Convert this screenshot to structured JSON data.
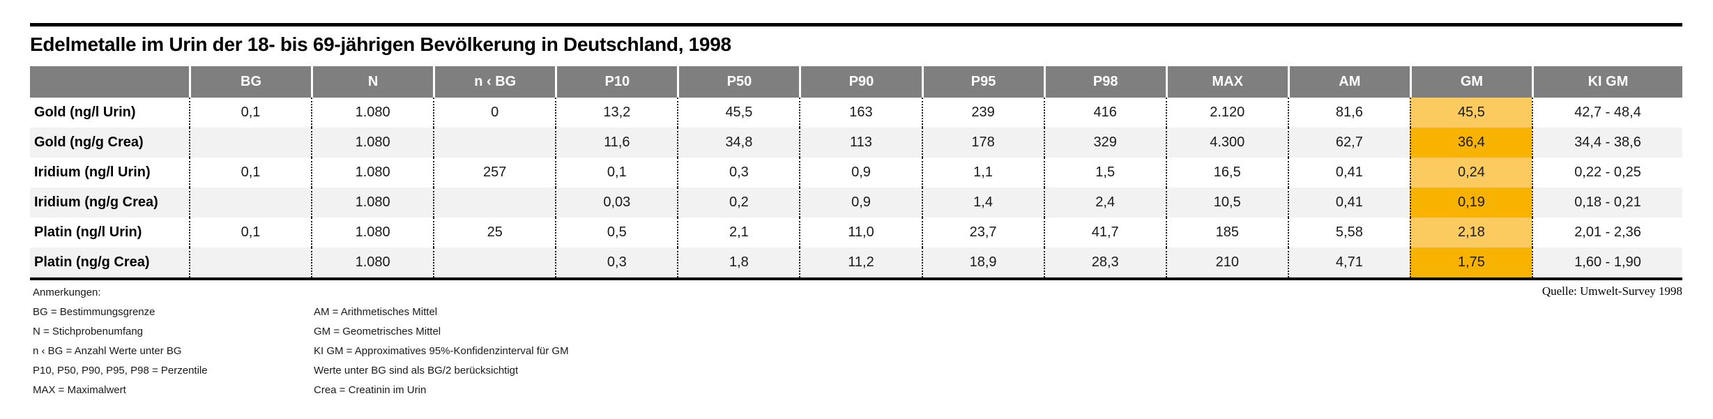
{
  "title": "Edelmetalle im Urin der 18- bis 69-jährigen Bevölkerung in Deutschland, 1998",
  "source": "Quelle: Umwelt-Survey 1998",
  "colors": {
    "header_gray": "#7f7f7f",
    "stripe_gray": "#f2f2f2",
    "gm_highlight_light": "#fbcb5f",
    "gm_highlight_dark": "#f8b200",
    "rule_black": "#000000"
  },
  "table": {
    "columns": [
      "",
      "BG",
      "N",
      "n ‹ BG",
      "P10",
      "P50",
      "P90",
      "P95",
      "P98",
      "MAX",
      "AM",
      "GM",
      "KI GM"
    ],
    "rows": [
      {
        "label": "Gold (ng/l Urin)",
        "bg": "0,1",
        "n": "1.080",
        "nbg": "0",
        "p10": "13,2",
        "p50": "45,5",
        "p90": "163",
        "p95": "239",
        "p98": "416",
        "max": "2.120",
        "am": "81,6",
        "gm": "45,5",
        "kigm": "42,7 - 48,4"
      },
      {
        "label": "Gold (ng/g Crea)",
        "bg": "",
        "n": "1.080",
        "nbg": "",
        "p10": "11,6",
        "p50": "34,8",
        "p90": "113",
        "p95": "178",
        "p98": "329",
        "max": "4.300",
        "am": "62,7",
        "gm": "36,4",
        "kigm": "34,4 - 38,6"
      },
      {
        "label": "Iridium (ng/l Urin)",
        "bg": "0,1",
        "n": "1.080",
        "nbg": "257",
        "p10": "0,1",
        "p50": "0,3",
        "p90": "0,9",
        "p95": "1,1",
        "p98": "1,5",
        "max": "16,5",
        "am": "0,41",
        "gm": "0,24",
        "kigm": "0,22 - 0,25"
      },
      {
        "label": "Iridium (ng/g Crea)",
        "bg": "",
        "n": "1.080",
        "nbg": "",
        "p10": "0,03",
        "p50": "0,2",
        "p90": "0,9",
        "p95": "1,4",
        "p98": "2,4",
        "max": "10,5",
        "am": "0,41",
        "gm": "0,19",
        "kigm": "0,18 - 0,21"
      },
      {
        "label": "Platin (ng/l Urin)",
        "bg": "0,1",
        "n": "1.080",
        "nbg": "25",
        "p10": "0,5",
        "p50": "2,1",
        "p90": "11,0",
        "p95": "23,7",
        "p98": "41,7",
        "max": "185",
        "am": "5,58",
        "gm": "2,18",
        "kigm": "2,01 - 2,36"
      },
      {
        "label": "Platin (ng/g Crea)",
        "bg": "",
        "n": "1.080",
        "nbg": "",
        "p10": "0,3",
        "p50": "1,8",
        "p90": "11,2",
        "p95": "18,9",
        "p98": "28,3",
        "max": "210",
        "am": "4,71",
        "gm": "1,75",
        "kigm": "1,60 - 1,90"
      }
    ]
  },
  "footnotes": {
    "heading": "Anmerkungen:",
    "left": [
      "BG = Bestimmungsgrenze",
      "N = Stichprobenumfang",
      "n ‹ BG = Anzahl Werte unter BG",
      "P10, P50, P90, P95, P98 = Perzentile",
      "MAX = Maximalwert"
    ],
    "right": [
      "AM = Arithmetisches Mittel",
      "GM = Geometrisches Mittel",
      "KI GM = Approximatives 95%-Konfidenzinterval für GM",
      "Werte unter BG sind als BG/2 berücksichtigt",
      "Crea = Creatinin im Urin"
    ]
  }
}
